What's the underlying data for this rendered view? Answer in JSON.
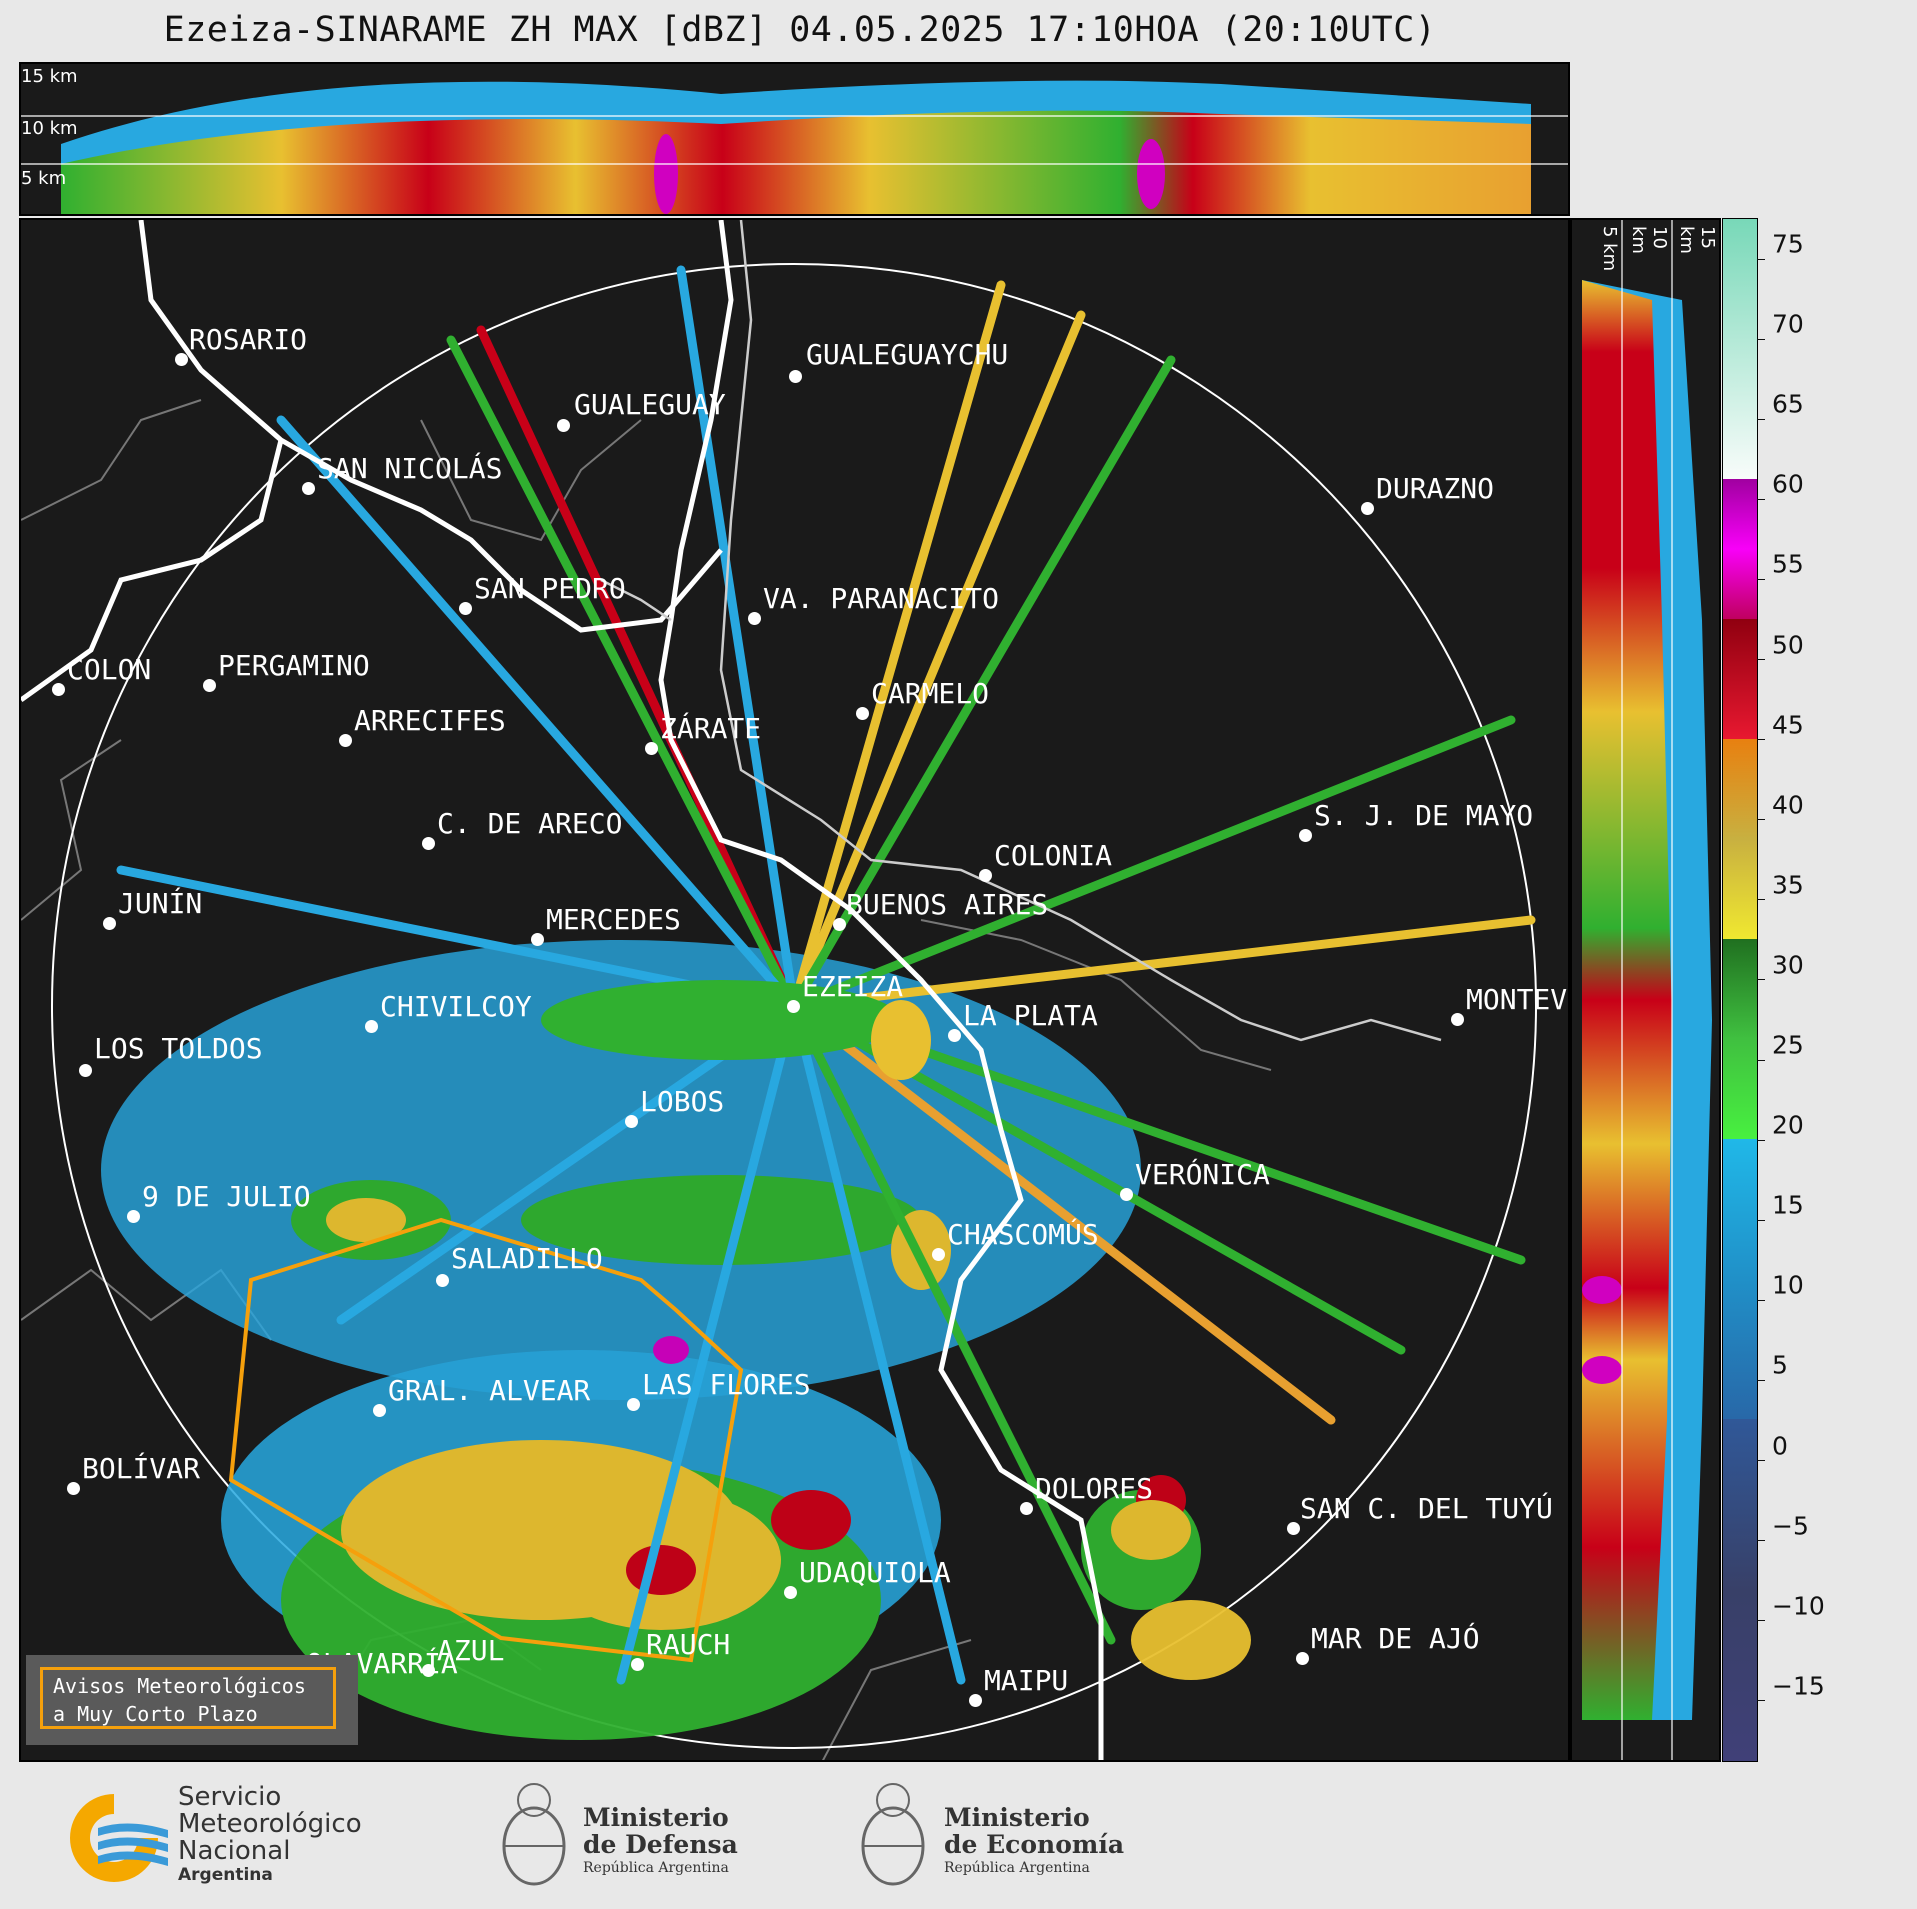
{
  "title": "Ezeiza-SINARAME ZH MAX [dBZ] 04.05.2025 17:10HOA (20:10UTC)",
  "top_panel": {
    "altitude_labels": [
      "15 km",
      "10 km",
      "5 km"
    ]
  },
  "right_panel": {
    "altitude_labels": [
      "5 km",
      "10 km",
      "15 km"
    ]
  },
  "colorbar": {
    "unit": "dBZ",
    "ticks": [
      "75",
      "70",
      "65",
      "60",
      "55",
      "50",
      "45",
      "40",
      "35",
      "30",
      "25",
      "20",
      "15",
      "10",
      "5",
      "0",
      "−5",
      "−10",
      "−15"
    ],
    "colors": {
      "range_60_75": "#b8eedd",
      "range_50_60": "#d000c0",
      "range_40_50": "#c80018",
      "range_30_40": "#e8c030",
      "range_20_30": "#30b030",
      "range_10_20": "#28a8e0",
      "range_min_10": "#3a4a80"
    }
  },
  "cities": [
    "ROSARIO",
    "GUALEGUAYCHU",
    "GUALEGUAY",
    "SAN NICOLÁS",
    "DURAZNO",
    "SAN PEDRO",
    "VA. PARANACITO",
    "COLON",
    "PERGAMINO",
    "CARMELO",
    "ARRECIFES",
    "ZÁRATE",
    "C. DE ARECO",
    "S. J. DE MAYO",
    "COLONIA",
    "JUNÍN",
    "MERCEDES",
    "BUENOS AIRES",
    "EZEIZA",
    "CHIVILCOY",
    "LA PLATA",
    "MONTEV",
    "LOS TOLDOS",
    "LOBOS",
    "VERÓNICA",
    "9 DE JULIO",
    "CHASCOMÚS",
    "SALADILLO",
    "LAS FLORES",
    "GRAL. ALVEAR",
    "BOLÍVAR",
    "DOLORES",
    "SAN C. DEL TUYÚ",
    "UDAQUIOLA",
    "AZUL",
    "RAUCH",
    "MAR DE AJÓ",
    "OLAVARRÍA",
    "MAIPU"
  ],
  "legend": {
    "line1": "Avisos Meteorológicos",
    "line2": "a Muy Corto Plazo"
  },
  "footer": {
    "smn": [
      "Servicio",
      "Meteorológico",
      "Nacional",
      "Argentina"
    ],
    "defensa": [
      "Ministerio",
      "de Defensa",
      "República Argentina"
    ],
    "economia": [
      "Ministerio",
      "de Economía",
      "República Argentina"
    ]
  }
}
